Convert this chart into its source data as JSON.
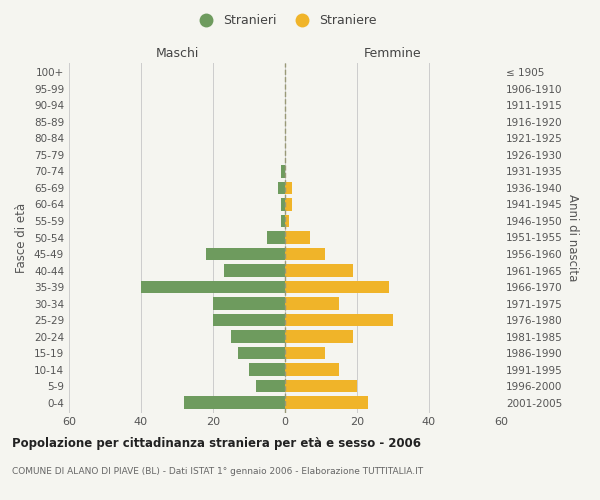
{
  "age_groups": [
    "0-4",
    "5-9",
    "10-14",
    "15-19",
    "20-24",
    "25-29",
    "30-34",
    "35-39",
    "40-44",
    "45-49",
    "50-54",
    "55-59",
    "60-64",
    "65-69",
    "70-74",
    "75-79",
    "80-84",
    "85-89",
    "90-94",
    "95-99",
    "100+"
  ],
  "birth_years": [
    "2001-2005",
    "1996-2000",
    "1991-1995",
    "1986-1990",
    "1981-1985",
    "1976-1980",
    "1971-1975",
    "1966-1970",
    "1961-1965",
    "1956-1960",
    "1951-1955",
    "1946-1950",
    "1941-1945",
    "1936-1940",
    "1931-1935",
    "1926-1930",
    "1921-1925",
    "1916-1920",
    "1911-1915",
    "1906-1910",
    "≤ 1905"
  ],
  "males": [
    28,
    8,
    10,
    13,
    15,
    20,
    20,
    40,
    17,
    22,
    5,
    1,
    1,
    2,
    1,
    0,
    0,
    0,
    0,
    0,
    0
  ],
  "females": [
    23,
    20,
    15,
    11,
    19,
    30,
    15,
    29,
    19,
    11,
    7,
    1,
    2,
    2,
    0,
    0,
    0,
    0,
    0,
    0,
    0
  ],
  "male_color": "#6e9b5e",
  "female_color": "#f0b429",
  "background_color": "#f5f5f0",
  "grid_color": "#cccccc",
  "bar_height": 0.75,
  "xlim": [
    -60,
    60
  ],
  "xticks": [
    -60,
    -40,
    -20,
    0,
    20,
    40,
    60
  ],
  "xtick_labels": [
    "60",
    "40",
    "20",
    "0",
    "20",
    "40",
    "60"
  ],
  "title": "Popolazione per cittadinanza straniera per età e sesso - 2006",
  "subtitle": "COMUNE DI ALANO DI PIAVE (BL) - Dati ISTAT 1° gennaio 2006 - Elaborazione TUTTITALIA.IT",
  "ylabel_left": "Fasce di età",
  "ylabel_right": "Anni di nascita",
  "header_left": "Maschi",
  "header_right": "Femmine",
  "legend_stranieri": "Stranieri",
  "legend_straniere": "Straniere"
}
